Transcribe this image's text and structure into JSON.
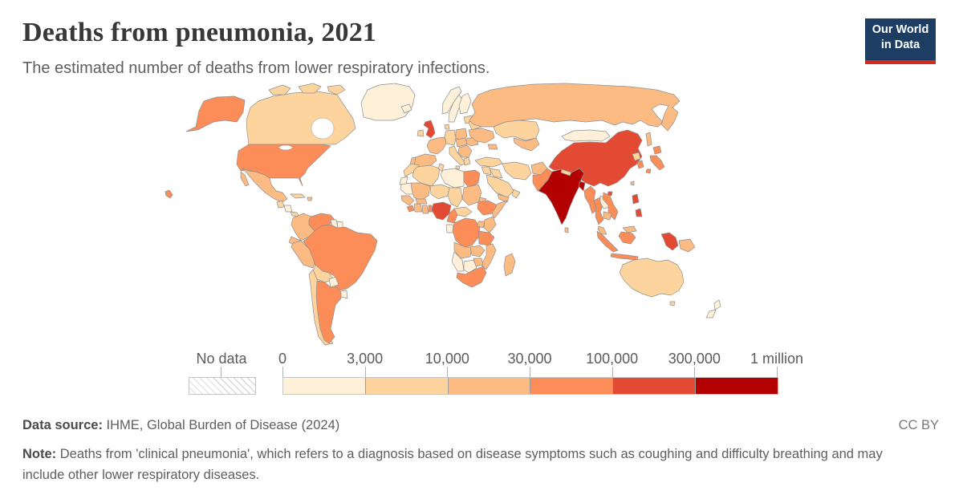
{
  "header": {
    "title": "Deaths from pneumonia, 2021",
    "subtitle": "The estimated number of deaths from lower respiratory infections."
  },
  "logo": {
    "line1": "Our World",
    "line2": "in Data",
    "bg_color": "#1d3d63",
    "accent_color": "#d42b21"
  },
  "legend": {
    "no_data_label": "No data",
    "tick_labels": [
      "0",
      "3,000",
      "10,000",
      "30,000",
      "100,000",
      "300,000",
      "1 million"
    ],
    "bin_colors": [
      "#fef0d9",
      "#fdd49e",
      "#fdbb84",
      "#fc8d59",
      "#e34a33",
      "#b30000"
    ]
  },
  "footer": {
    "source_label": "Data source:",
    "source_text": " IHME, Global Burden of Disease (2024)",
    "license": "CC BY",
    "note_label": "Note:",
    "note_text": " Deaths from 'clinical pneumonia', which refers to a diagnosis based on disease symptoms such as coughing and difficulty breathing and may include other lower respiratory diseases."
  },
  "chart_data": {
    "type": "choropleth_map",
    "title": "Deaths from pneumonia, 2021",
    "unit": "deaths from lower respiratory infections",
    "bin_edges": [
      "0",
      "3,000",
      "10,000",
      "30,000",
      "100,000",
      "300,000",
      "1 million"
    ],
    "bin_colors": [
      "#fef0d9",
      "#fdd49e",
      "#fdbb84",
      "#fc8d59",
      "#e34a33",
      "#b30000"
    ],
    "no_data_style": "hatched",
    "countries": {
      "greenland": 0,
      "iceland": 0,
      "norway": 0,
      "sweden": 0,
      "finland": 0,
      "mongolia": 0,
      "paraguay": 0,
      "uruguay": 0,
      "namibia": 0,
      "botswana": 0,
      "libya": 0,
      "mauritania": 0,
      "western-sahara": 0,
      "laos": 0,
      "gabon-congo": 0,
      "new-zealand": 0,
      "honduras-nicaragua": 0,
      "guyana": 0,
      "suriname": 0,
      "canada": 1,
      "australia": 1,
      "ireland": 1,
      "denmark": 1,
      "germany": 1,
      "italy": 1,
      "greece": 1,
      "belarus": 1,
      "baltics": 1,
      "kazakhstan": 1,
      "turkey": 1,
      "levant": 1,
      "iraq": 1,
      "iran": 1,
      "saudi-arabia": 1,
      "oman": 1,
      "morocco": 1,
      "algeria": 1,
      "tunisia": 1,
      "niger": 1,
      "chad": 1,
      "central-african-republic": 1,
      "guatemala": 1,
      "panama-costa-rica": 1,
      "cuba": 1,
      "bolivia": 1,
      "chile": 1,
      "nepal": 1,
      "north-korea": 1,
      "russia": 2,
      "mexico": 2,
      "colombia": 2,
      "ecuador": 2,
      "peru": 2,
      "france": 2,
      "spain": 2,
      "portugal": 2,
      "poland": 2,
      "central-europe": 2,
      "balkans": 2,
      "romania": 2,
      "ukraine": 2,
      "central-asia": 2,
      "caucasus": 2,
      "afghanistan": 2,
      "yemen": 2,
      "mali": 2,
      "sudan": 2,
      "senegal-guinea": 2,
      "ivory-coast": 2,
      "ghana": 2,
      "burkina-faso": 2,
      "somalia": 2,
      "eritrea": 2,
      "uganda": 2,
      "kenya": 2,
      "angola": 2,
      "zambia": 2,
      "mozambique": 2,
      "zimbabwe": 2,
      "madagascar": 2,
      "hispaniola": 2,
      "papua-new-guinea": 2,
      "malaysia": 2,
      "cambodia": 2,
      "taiwan": 2,
      "sri-lanka": 2,
      "united-states": 3,
      "brazil": 3,
      "argentina": 3,
      "venezuela": 3,
      "egypt": 3,
      "sierra-leone": 3,
      "togo-benin": 3,
      "cameroon": 3,
      "democratic-republic-of-congo": 3,
      "tanzania": 3,
      "south-africa": 3,
      "ethiopia": 3,
      "pakistan": 3,
      "myanmar": 3,
      "thailand": 3,
      "vietnam": 3,
      "indonesia": 3,
      "japan": 3,
      "south-korea": 3,
      "united-kingdom": 4,
      "china": 4,
      "nigeria": 4,
      "philippines": 4,
      "sulawesi": 4,
      "india": 5,
      "bangladesh": 5
    }
  }
}
